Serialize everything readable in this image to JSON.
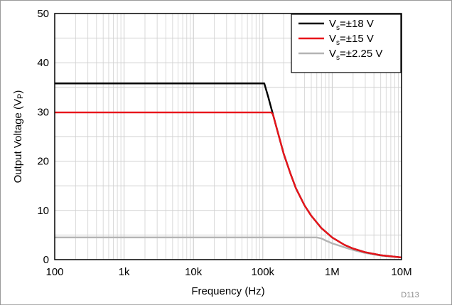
{
  "chart_data": {
    "type": "line",
    "xlabel": "Frequency (Hz)",
    "ylabel": "Output Voltage (V",
    "ylabel_sub": "P",
    "ylabel_end": ")",
    "xscale": "log",
    "xlim": [
      100,
      10000000
    ],
    "ylim": [
      0,
      50
    ],
    "grid": true,
    "legend_position": "top-right",
    "x_ticks": [
      {
        "value": 100,
        "label": "100"
      },
      {
        "value": 1000,
        "label": "1k"
      },
      {
        "value": 10000,
        "label": "10k"
      },
      {
        "value": 100000,
        "label": "100k"
      },
      {
        "value": 1000000,
        "label": "1M"
      },
      {
        "value": 10000000,
        "label": "10M"
      }
    ],
    "y_ticks": [
      {
        "value": 0,
        "label": "0"
      },
      {
        "value": 10,
        "label": "10"
      },
      {
        "value": 20,
        "label": "20"
      },
      {
        "value": 30,
        "label": "30"
      },
      {
        "value": 40,
        "label": "40"
      },
      {
        "value": 50,
        "label": "50"
      }
    ],
    "series": [
      {
        "name": "V",
        "name_sub": "s",
        "name_rest": "=±18 V",
        "color": "#000000",
        "x": [
          100,
          105000,
          120000,
          140000,
          160000,
          200000,
          250000,
          300000,
          400000,
          500000,
          700000,
          1000000,
          1500000,
          2000000,
          3000000,
          5000000,
          10000000
        ],
        "y": [
          35.8,
          35.8,
          33.0,
          29.5,
          26.5,
          21.5,
          17.5,
          14.5,
          11.0,
          8.9,
          6.4,
          4.5,
          3.0,
          2.25,
          1.5,
          0.9,
          0.45
        ]
      },
      {
        "name": "V",
        "name_sub": "s",
        "name_rest": "=±15 V",
        "color": "#e8141a",
        "x": [
          100,
          133000,
          140000,
          160000,
          200000,
          250000,
          300000,
          400000,
          500000,
          700000,
          1000000,
          1500000,
          2000000,
          3000000,
          5000000,
          10000000
        ],
        "y": [
          29.9,
          29.9,
          29.5,
          26.5,
          21.5,
          17.5,
          14.5,
          11.0,
          8.9,
          6.4,
          4.5,
          3.0,
          2.25,
          1.5,
          0.9,
          0.45
        ]
      },
      {
        "name": "V",
        "name_sub": "s",
        "name_rest": "=±2.25 V",
        "color": "#b4b4b4",
        "x": [
          100,
          600000,
          700000,
          800000,
          1000000,
          1500000,
          2000000,
          3000000,
          5000000,
          10000000
        ],
        "y": [
          4.5,
          4.5,
          4.3,
          3.9,
          3.3,
          2.5,
          1.95,
          1.35,
          0.82,
          0.42
        ]
      }
    ]
  },
  "figure_id": "D113"
}
